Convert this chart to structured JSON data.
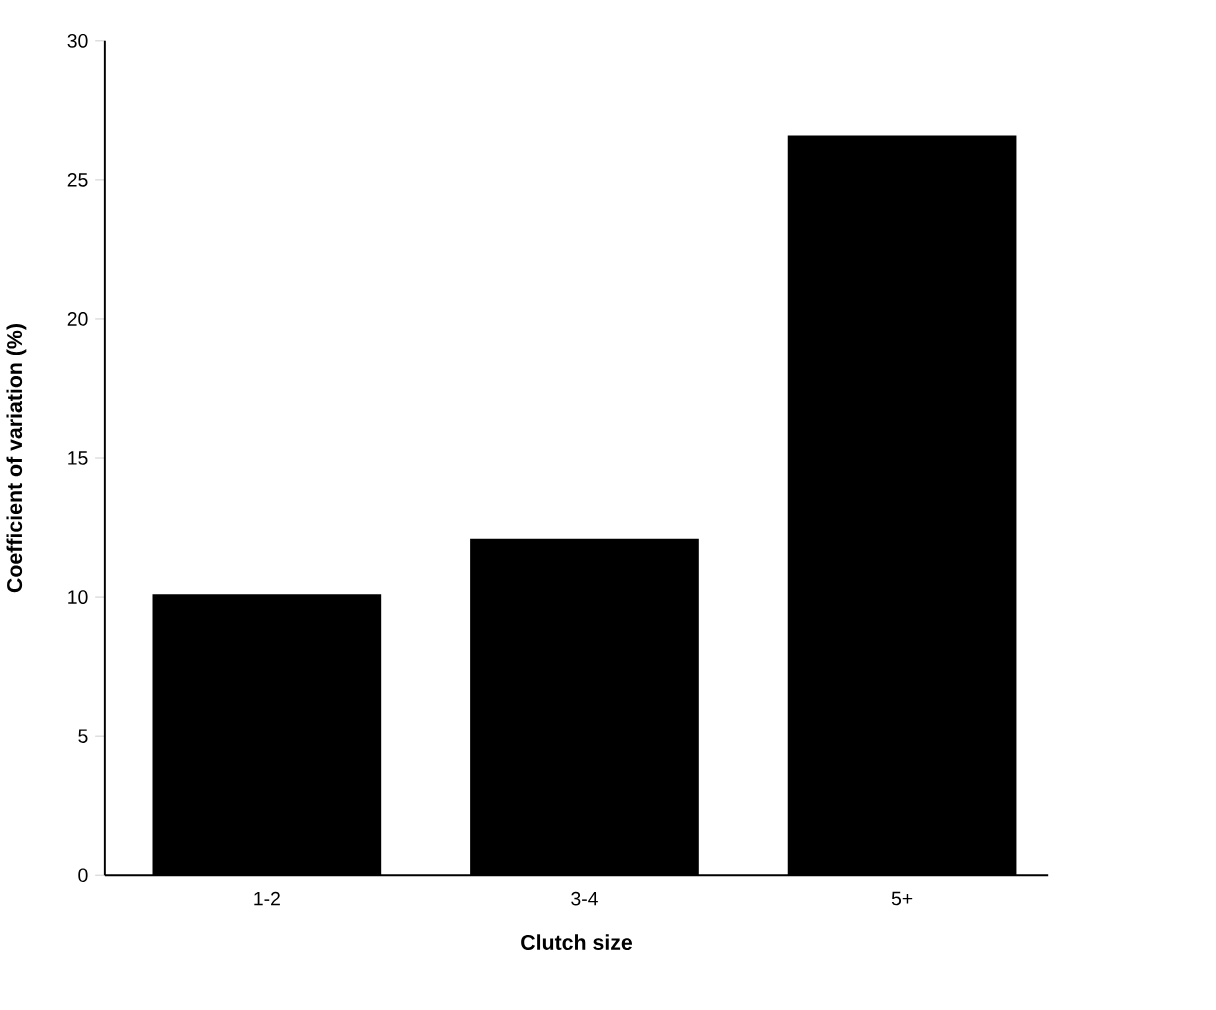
{
  "chart_data": {
    "type": "bar",
    "xlabel": "Clutch size",
    "ylabel": "Coefficient of variation (%)",
    "categories": [
      "1-2",
      "3-4",
      "5+"
    ],
    "values": [
      10.1,
      12.1,
      26.6
    ],
    "color": "#000000",
    "ylim": [
      0,
      30
    ],
    "yticks": [
      0,
      5,
      10,
      15,
      20,
      25,
      30
    ]
  }
}
